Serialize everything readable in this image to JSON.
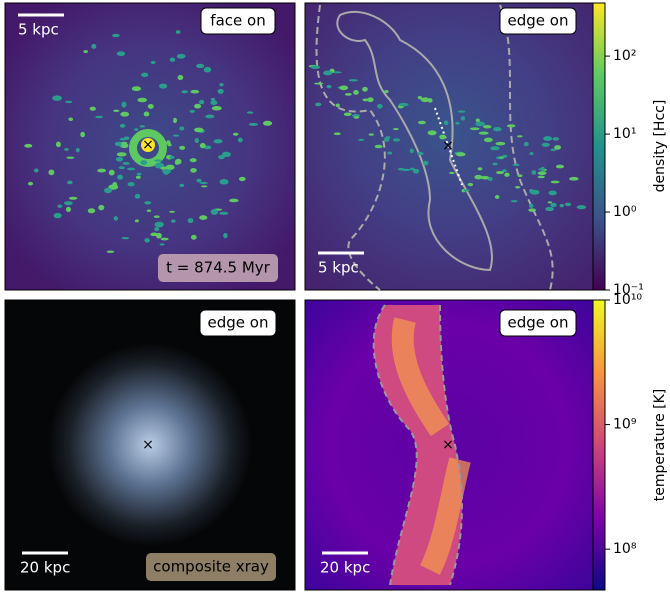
{
  "panels": [
    {
      "label": "face on",
      "scale_bar": "5 kpc",
      "note": "t = 874.5 Myr"
    },
    {
      "label": "edge on",
      "scale_bar": "5 kpc"
    },
    {
      "label": "edge on",
      "scale_bar": "20 kpc",
      "note": "composite xray"
    },
    {
      "label": "edge on",
      "scale_bar": "20 kpc"
    }
  ],
  "colorbars": [
    {
      "label": "density [Hcc]",
      "scale": "log",
      "lim": [
        0.1,
        480
      ],
      "ticks": [
        {
          "value": 0.1,
          "label": "10⁻¹"
        },
        {
          "value": 1,
          "label": "10⁰"
        },
        {
          "value": 10,
          "label": "10¹"
        },
        {
          "value": 100,
          "label": "10²"
        }
      ]
    },
    {
      "label": "temperature [K]",
      "scale": "log",
      "lim": [
        47000000,
        10000000000
      ],
      "ticks": [
        {
          "value": 100000000,
          "label": "10⁸"
        },
        {
          "value": 1000000000,
          "label": "10⁹"
        },
        {
          "value": 10000000000,
          "label": "10¹⁰"
        }
      ]
    }
  ]
}
